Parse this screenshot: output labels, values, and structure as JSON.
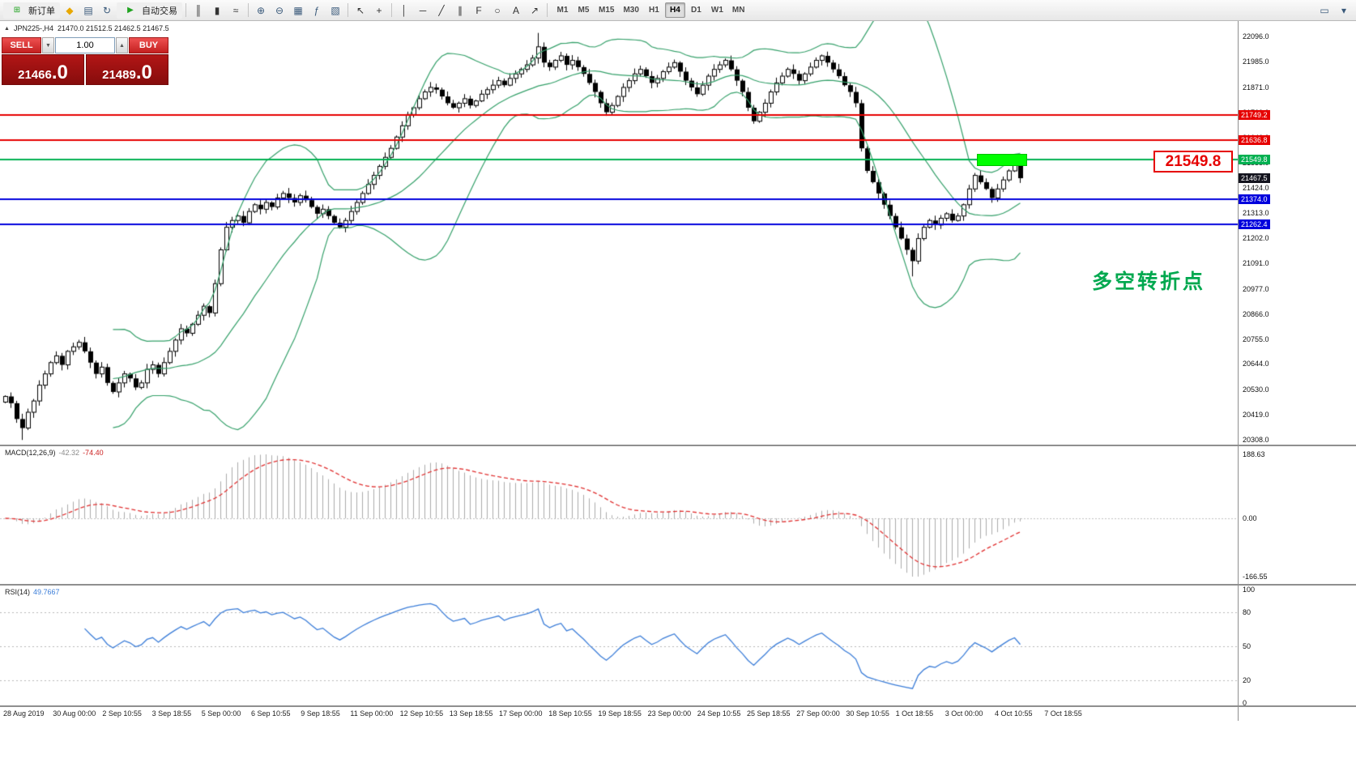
{
  "toolbar": {
    "new_order": "新订单",
    "auto_trading": "自动交易",
    "timeframes": [
      "M1",
      "M5",
      "M15",
      "M30",
      "H1",
      "H4",
      "D1",
      "W1",
      "MN"
    ],
    "active_timeframe": "H4"
  },
  "trade_panel": {
    "sell_label": "SELL",
    "buy_label": "BUY",
    "volume": "1.00",
    "sell_price": "21466",
    "sell_price_frac": ".0",
    "buy_price": "21489",
    "buy_price_frac": ".0"
  },
  "header": {
    "symbol": "JPN225-,H4",
    "ohlc": "21470.0 21512.5 21462.5 21467.5"
  },
  "annotations": {
    "turning_point": "多空转折点",
    "big_price": "21549.8"
  },
  "colors": {
    "band": "#35a06a",
    "hline_red": "#e60000",
    "hline_green": "#00b050",
    "hline_blue": "#0000dd",
    "macd_hist": "#ababab",
    "macd_signal": "#e03030",
    "rsi_line": "#3b7dd8",
    "current_badge_bg": "#14141e",
    "box_green": "#00ff00"
  },
  "price_axis": {
    "min": 20308.0,
    "max": 22096.0,
    "plain_labels": [
      "22096.0",
      "21985.0",
      "21871.0",
      "21760.0",
      "21646.0",
      "21535.0",
      "21424.0",
      "21313.0",
      "21202.0",
      "21091.0",
      "20977.0",
      "20866.0",
      "20755.0",
      "20644.0",
      "20530.0",
      "20419.0",
      "20308.0"
    ],
    "current_price": "21467.5",
    "level_badges": [
      {
        "value": "21749.2",
        "color": "#e60000"
      },
      {
        "value": "21636.8",
        "color": "#e60000"
      },
      {
        "value": "21549.8",
        "color": "#00b050"
      },
      {
        "value": "21374.0",
        "color": "#0000dd"
      },
      {
        "value": "21262.4",
        "color": "#0000dd"
      }
    ]
  },
  "chart_data": {
    "type": "candlestick",
    "title": "JPN225-,H4",
    "ylim": [
      20308.0,
      22096.0
    ],
    "closes": [
      20500,
      20470,
      20400,
      20360,
      20430,
      20480,
      20550,
      20600,
      20650,
      20680,
      20640,
      20700,
      20720,
      20740,
      20700,
      20650,
      20600,
      20630,
      20560,
      20520,
      20560,
      20600,
      20580,
      20540,
      20560,
      20620,
      20640,
      20600,
      20650,
      20700,
      20750,
      20800,
      20780,
      20820,
      20860,
      20900,
      20870,
      21000,
      21150,
      21250,
      21280,
      21300,
      21270,
      21320,
      21350,
      21330,
      21360,
      21340,
      21380,
      21400,
      21380,
      21360,
      21390,
      21370,
      21340,
      21310,
      21330,
      21300,
      21270,
      21250,
      21280,
      21320,
      21360,
      21400,
      21440,
      21480,
      21520,
      21560,
      21600,
      21650,
      21700,
      21750,
      21780,
      21820,
      21850,
      21870,
      21860,
      21830,
      21800,
      21780,
      21800,
      21820,
      21790,
      21810,
      21840,
      21860,
      21880,
      21900,
      21880,
      21910,
      21930,
      21950,
      21970,
      22000,
      22050,
      21980,
      21960,
      21990,
      22010,
      21970,
      21990,
      21960,
      21930,
      21890,
      21850,
      21800,
      21760,
      21790,
      21830,
      21870,
      21900,
      21930,
      21950,
      21920,
      21890,
      21910,
      21940,
      21960,
      21980,
      21940,
      21900,
      21870,
      21840,
      21880,
      21920,
      21950,
      21970,
      21990,
      21950,
      21900,
      21850,
      21780,
      21720,
      21760,
      21800,
      21850,
      21890,
      21920,
      21950,
      21930,
      21900,
      21930,
      21960,
      21990,
      22010,
      21980,
      21950,
      21920,
      21880,
      21850,
      21800,
      21600,
      21500,
      21450,
      21400,
      21350,
      21300,
      21250,
      21200,
      21150,
      21100,
      21200,
      21250,
      21280,
      21260,
      21290,
      21310,
      21280,
      21300,
      21350,
      21420,
      21480,
      21450,
      21420,
      21380,
      21420,
      21460,
      21500,
      21530,
      21467.5
    ],
    "bollinger": {
      "period": 20,
      "deviation": 2
    },
    "x_labels": [
      "28 Aug 2019",
      "30 Aug 00:00",
      "2 Sep 10:55",
      "3 Sep 18:55",
      "5 Sep 00:00",
      "6 Sep 10:55",
      "9 Sep 18:55",
      "11 Sep 00:00",
      "12 Sep 10:55",
      "13 Sep 18:55",
      "17 Sep 00:00",
      "18 Sep 10:55",
      "19 Sep 18:55",
      "23 Sep 00:00",
      "24 Sep 10:55",
      "25 Sep 18:55",
      "27 Sep 00:00",
      "30 Sep 10:55",
      "1 Oct 18:55",
      "3 Oct 00:00",
      "4 Oct 10:55",
      "7 Oct 18:55"
    ],
    "macd": {
      "name": "MACD(12,26,9)",
      "value_main": "-42.32",
      "value_signal": "-74.40",
      "axis_labels": [
        "188.63",
        "0.00",
        "-166.55"
      ]
    },
    "rsi": {
      "name": "RSI(14)",
      "value": "49.7667",
      "axis_labels": [
        "100",
        "80",
        "50",
        "20",
        "0"
      ],
      "levels": [
        80,
        50,
        20
      ]
    }
  },
  "icons": {
    "new-order": "⊞",
    "alerts": "◆",
    "profiles": "▤",
    "refresh": "↻",
    "auto-play": "▶",
    "bar-chart": "║",
    "candle-chart": "▮",
    "line-chart": "≈",
    "zoom-in": "⊕",
    "zoom-out": "⊖",
    "tile-windows": "▦",
    "indicators": "ƒ",
    "data-window": "▧",
    "cursor": "↖",
    "crosshair": "+",
    "vertical-line": "│",
    "horizontal-line": "─",
    "trendline": "╱",
    "channel": "∥",
    "fibonacci": "F",
    "ellipse": "○",
    "text-tool": "A",
    "arrow-tool": "↗",
    "collapse": "▲",
    "spinner-down": "▼",
    "spinner-up": "▲",
    "new-chart": "▭",
    "window-menu": "▾"
  }
}
